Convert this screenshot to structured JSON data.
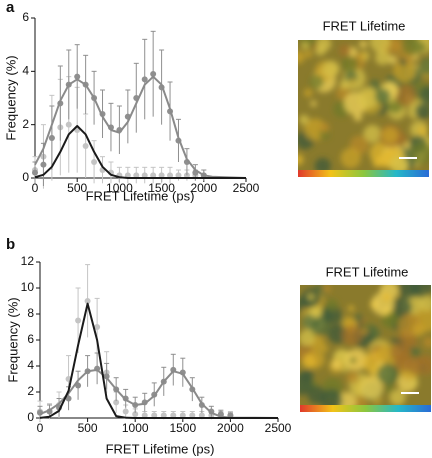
{
  "chart_data": [
    {
      "type": "line",
      "panel_label": "a",
      "image_title": "FRET Lifetime",
      "xlabel": "FRET Lifetime (ps)",
      "ylabel": "Frequency (%)",
      "xlim": [
        0,
        2500
      ],
      "ylim": [
        0,
        6
      ],
      "xticks": [
        0,
        500,
        1000,
        1500,
        2000,
        2500
      ],
      "yticks": [
        0,
        2,
        4,
        6
      ],
      "series": [
        {
          "kind": "points",
          "color": "#c4c4c4",
          "x": [
            0,
            100,
            200,
            300,
            400,
            500,
            600,
            700,
            800,
            900,
            1000,
            1100,
            1200,
            1300,
            1400,
            1500,
            1600,
            1700,
            1800,
            1900,
            2000
          ],
          "values": [
            0.3,
            0.8,
            1.5,
            1.9,
            2.0,
            1.8,
            1.2,
            0.6,
            0.3,
            0.2,
            0.1,
            0.1,
            0.1,
            0.1,
            0.1,
            0.1,
            0.1,
            0.1,
            0.1,
            0.1,
            0.1
          ],
          "errors": [
            0.5,
            1.2,
            1.6,
            1.8,
            1.8,
            1.6,
            1.2,
            0.8,
            0.5,
            0.4,
            0.3,
            0.3,
            0.3,
            0.3,
            0.3,
            0.3,
            0.3,
            0.2,
            0.2,
            0.2,
            0.2
          ]
        },
        {
          "kind": "points",
          "color": "#8f8f8f",
          "x": [
            0,
            100,
            200,
            300,
            400,
            500,
            600,
            700,
            800,
            900,
            1000,
            1100,
            1200,
            1300,
            1400,
            1500,
            1600,
            1700,
            1800,
            1900,
            2000
          ],
          "values": [
            0.2,
            0.5,
            1.5,
            2.8,
            3.5,
            3.8,
            3.5,
            3.0,
            2.4,
            1.9,
            1.8,
            2.3,
            3.0,
            3.7,
            3.9,
            3.4,
            2.5,
            1.4,
            0.6,
            0.2,
            0.1
          ],
          "errors": [
            0.4,
            0.8,
            1.2,
            1.4,
            1.3,
            1.2,
            1.1,
            1.0,
            0.9,
            0.9,
            0.9,
            1.0,
            1.3,
            1.5,
            1.6,
            1.4,
            1.1,
            0.8,
            0.5,
            0.3,
            0.2
          ]
        },
        {
          "kind": "curve",
          "color": "#8a8a8a",
          "x": [
            0,
            100,
            200,
            300,
            400,
            500,
            600,
            700,
            800,
            900,
            1000,
            1100,
            1200,
            1300,
            1400,
            1500,
            1600,
            1700,
            1800,
            1900,
            2000,
            2100,
            2500
          ],
          "values": [
            0.5,
            1.1,
            2.0,
            2.9,
            3.5,
            3.7,
            3.5,
            3.0,
            2.3,
            1.8,
            1.7,
            2.1,
            2.8,
            3.5,
            3.8,
            3.5,
            2.6,
            1.5,
            0.7,
            0.3,
            0.1,
            0.05,
            0
          ]
        },
        {
          "kind": "curve",
          "color": "#1a1a1a",
          "x": [
            0,
            100,
            200,
            300,
            400,
            500,
            600,
            700,
            800,
            900,
            1000,
            1100,
            2500
          ],
          "values": [
            0.03,
            0.12,
            0.42,
            0.98,
            1.64,
            1.95,
            1.64,
            0.98,
            0.42,
            0.12,
            0.03,
            0,
            0
          ]
        }
      ]
    },
    {
      "type": "line",
      "panel_label": "b",
      "image_title": "FRET Lifetime",
      "xlabel": "FRET Lifetime (ps)",
      "ylabel": "Frequency (%)",
      "xlim": [
        0,
        2500
      ],
      "ylim": [
        0,
        12
      ],
      "xticks": [
        0,
        500,
        1000,
        1500,
        2000,
        2500
      ],
      "yticks": [
        0,
        2,
        4,
        6,
        8,
        10,
        12
      ],
      "series": [
        {
          "kind": "points",
          "color": "#c4c4c4",
          "x": [
            0,
            100,
            200,
            300,
            400,
            500,
            600,
            700,
            800,
            900,
            1000,
            1100,
            1200,
            1300,
            1400,
            1500,
            1600,
            1700,
            1800,
            1900,
            2000
          ],
          "values": [
            0.5,
            0.5,
            1.0,
            3.0,
            7.5,
            9.0,
            7.0,
            3.5,
            1.2,
            0.5,
            0.3,
            0.2,
            0.2,
            0.2,
            0.2,
            0.2,
            0.2,
            0.2,
            0.2,
            0.2,
            0.2
          ],
          "errors": [
            0.8,
            0.6,
            1.0,
            1.8,
            2.5,
            2.8,
            2.2,
            1.6,
            0.8,
            0.5,
            0.4,
            0.3,
            0.3,
            0.3,
            0.3,
            0.3,
            0.3,
            0.3,
            0.3,
            0.3,
            0.3
          ]
        },
        {
          "kind": "points",
          "color": "#8f8f8f",
          "x": [
            0,
            100,
            200,
            300,
            400,
            500,
            600,
            700,
            800,
            900,
            1000,
            1100,
            1200,
            1300,
            1400,
            1500,
            1600,
            1700,
            1800,
            1900,
            2000
          ],
          "values": [
            0.4,
            0.5,
            0.8,
            1.5,
            2.5,
            3.6,
            3.8,
            3.2,
            2.2,
            1.5,
            1.0,
            1.2,
            1.8,
            2.8,
            3.7,
            3.5,
            2.2,
            1.0,
            0.5,
            0.3,
            0.2
          ],
          "errors": [
            0.5,
            0.5,
            0.7,
            0.9,
            1.1,
            1.2,
            1.2,
            1.0,
            0.9,
            0.7,
            0.6,
            0.7,
            0.9,
            1.1,
            1.2,
            1.1,
            0.9,
            0.6,
            0.4,
            0.3,
            0.2
          ]
        },
        {
          "kind": "curve",
          "color": "#8a8a8a",
          "x": [
            0,
            100,
            200,
            300,
            400,
            500,
            600,
            700,
            800,
            900,
            1000,
            1100,
            1200,
            1300,
            1400,
            1500,
            1600,
            1700,
            1800,
            1900,
            2000,
            2500
          ],
          "values": [
            0.3,
            0.6,
            1.1,
            1.9,
            2.9,
            3.6,
            3.7,
            3.1,
            2.2,
            1.4,
            1.0,
            1.1,
            1.7,
            2.8,
            3.6,
            3.4,
            2.3,
            1.1,
            0.4,
            0.1,
            0.03,
            0
          ]
        },
        {
          "kind": "curve",
          "color": "#1a1a1a",
          "x": [
            0,
            100,
            200,
            300,
            400,
            500,
            600,
            700,
            800,
            900,
            1000,
            2500
          ],
          "values": [
            0.01,
            0.1,
            0.55,
            2.1,
            5.6,
            8.8,
            6.0,
            1.5,
            0.15,
            0.02,
            0,
            0
          ]
        }
      ]
    }
  ]
}
